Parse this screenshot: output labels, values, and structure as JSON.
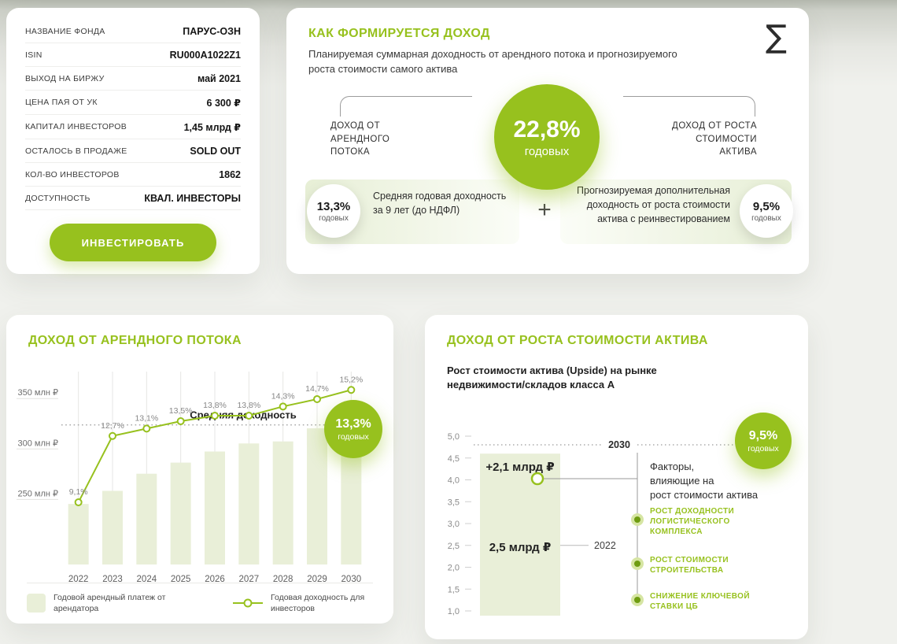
{
  "colors": {
    "accent": "#97c11e",
    "bar_fill": "#e9efd8",
    "grid": "#e6e6e4",
    "bullet_ring": "#d6e5a3",
    "bullet_core": "#6e9c11"
  },
  "fund_panel": {
    "rows": [
      {
        "label": "НАЗВАНИЕ ФОНДА",
        "value": "ПАРУС-ОЗН"
      },
      {
        "label": "ISIN",
        "value": "RU000A1022Z1"
      },
      {
        "label": "ВЫХОД НА БИРЖУ",
        "value": "май 2021"
      },
      {
        "label": "ЦЕНА ПАЯ ОТ УК",
        "value": "6 300 ₽"
      },
      {
        "label": "КАПИТАЛ ИНВЕСТОРОВ",
        "value": "1,45 млрд ₽"
      },
      {
        "label": "ОСТАЛОСЬ В ПРОДАЖЕ",
        "value": "SOLD OUT"
      },
      {
        "label": "КОЛ-ВО ИНВЕСТОРОВ",
        "value": "1862"
      },
      {
        "label": "ДОСТУПНОСТЬ",
        "value": "КВАЛ. ИНВЕСТОРЫ"
      }
    ],
    "invest_button": "ИНВЕСТИРОВАТЬ"
  },
  "income_panel": {
    "title": "КАК ФОРМИРУЕТСЯ ДОХОД",
    "subtitle": "Планируемая суммарная доходность от арендного потока и прогнозируемого роста стоимости самого актива",
    "sigma_icon": "∑",
    "total": {
      "percent": "22,8%",
      "unit": "годовых"
    },
    "left": {
      "branch": "ДОХОД ОТ\nАРЕНДНОГО\nПОТОКА",
      "badge": "13,3%",
      "badge_unit": "годовых",
      "text": "Средняя годовая доходность за 9 лет (до НДФЛ)"
    },
    "plus": "+",
    "right": {
      "branch": "ДОХОД ОТ РОСТА\nСТОИМОСТИ\nАКТИВА",
      "text": "Прогнозируемая дополнительная доходность от роста стоимости актива с реинвестированием",
      "badge": "9,5%",
      "badge_unit": "годовых"
    }
  },
  "chart_data": [
    {
      "id": "rent",
      "type": "bar",
      "title": "ДОХОД ОТ АРЕНДНОГО ПОТОКА",
      "categories": [
        "2022",
        "2023",
        "2024",
        "2025",
        "2026",
        "2027",
        "2028",
        "2029",
        "2030"
      ],
      "series": [
        {
          "name": "Годовой арендный платеж от арендатора",
          "type": "bar",
          "unit": "млн ₽",
          "values": [
            240,
            253,
            270,
            281,
            292,
            300,
            302,
            315,
            335
          ]
        },
        {
          "name": "Годовая доходность для инвесторов",
          "type": "line",
          "unit": "%",
          "values": [
            9.1,
            12.7,
            13.1,
            13.5,
            13.8,
            13.8,
            14.3,
            14.7,
            15.2
          ],
          "point_labels": [
            "9,1%",
            "12,7%",
            "13,1%",
            "13,5%",
            "13,8%",
            "13,8%",
            "14,3%",
            "14,7%",
            "15,2%"
          ]
        }
      ],
      "y_ticks": [
        {
          "value": 250,
          "label": "250 млн ₽"
        },
        {
          "value": 300,
          "label": "300 млн ₽"
        },
        {
          "value": 350,
          "label": "350 млн ₽"
        }
      ],
      "bar_ylim": [
        180,
        365
      ],
      "grid": "vertical",
      "legend_position": "bottom",
      "average": {
        "value": 13.3,
        "label": "Средняя доходность",
        "badge": "13,3%",
        "badge_unit": "годовых"
      }
    },
    {
      "id": "upside",
      "type": "bar",
      "title": "ДОХОД ОТ РОСТА СТОИМОСТИ АКТИВА",
      "subtitle": "Рост стоимости актива (Upside) на рынке недвижимости/складов класса А",
      "unit": "млрд ₽",
      "y_ticks": [
        {
          "value": 5.0,
          "label": "5,0"
        },
        {
          "value": 4.5,
          "label": "4,5"
        },
        {
          "value": 4.0,
          "label": "4,0"
        },
        {
          "value": 3.5,
          "label": "3,5"
        },
        {
          "value": 3.0,
          "label": "3,0"
        },
        {
          "value": 2.5,
          "label": "2,5"
        },
        {
          "value": 2.0,
          "label": "2,0"
        },
        {
          "value": 1.5,
          "label": "1,5"
        },
        {
          "value": 1.0,
          "label": "1,0"
        }
      ],
      "base": {
        "year": "2022",
        "value": 2.5,
        "label": "2,5 млрд ₽"
      },
      "upside": {
        "value": 2.1,
        "label": "+2,1 млрд ₽"
      },
      "target": {
        "year": "2030",
        "value": 4.6
      },
      "badge": {
        "percent": "9,5%",
        "unit": "годовых"
      },
      "factors_title": "Факторы,\nвлияющие на\nрост стоимости актива",
      "factors": [
        "РОСТ ДОХОДНОСТИ\nЛОГИСТИЧЕСКОГО\nКОМПЛЕКСА",
        "РОСТ СТОИМОСТИ\nСТРОИТЕЛЬСТВА",
        "СНИЖЕНИЕ КЛЮЧЕВОЙ\nСТАВКИ ЦБ"
      ]
    }
  ]
}
